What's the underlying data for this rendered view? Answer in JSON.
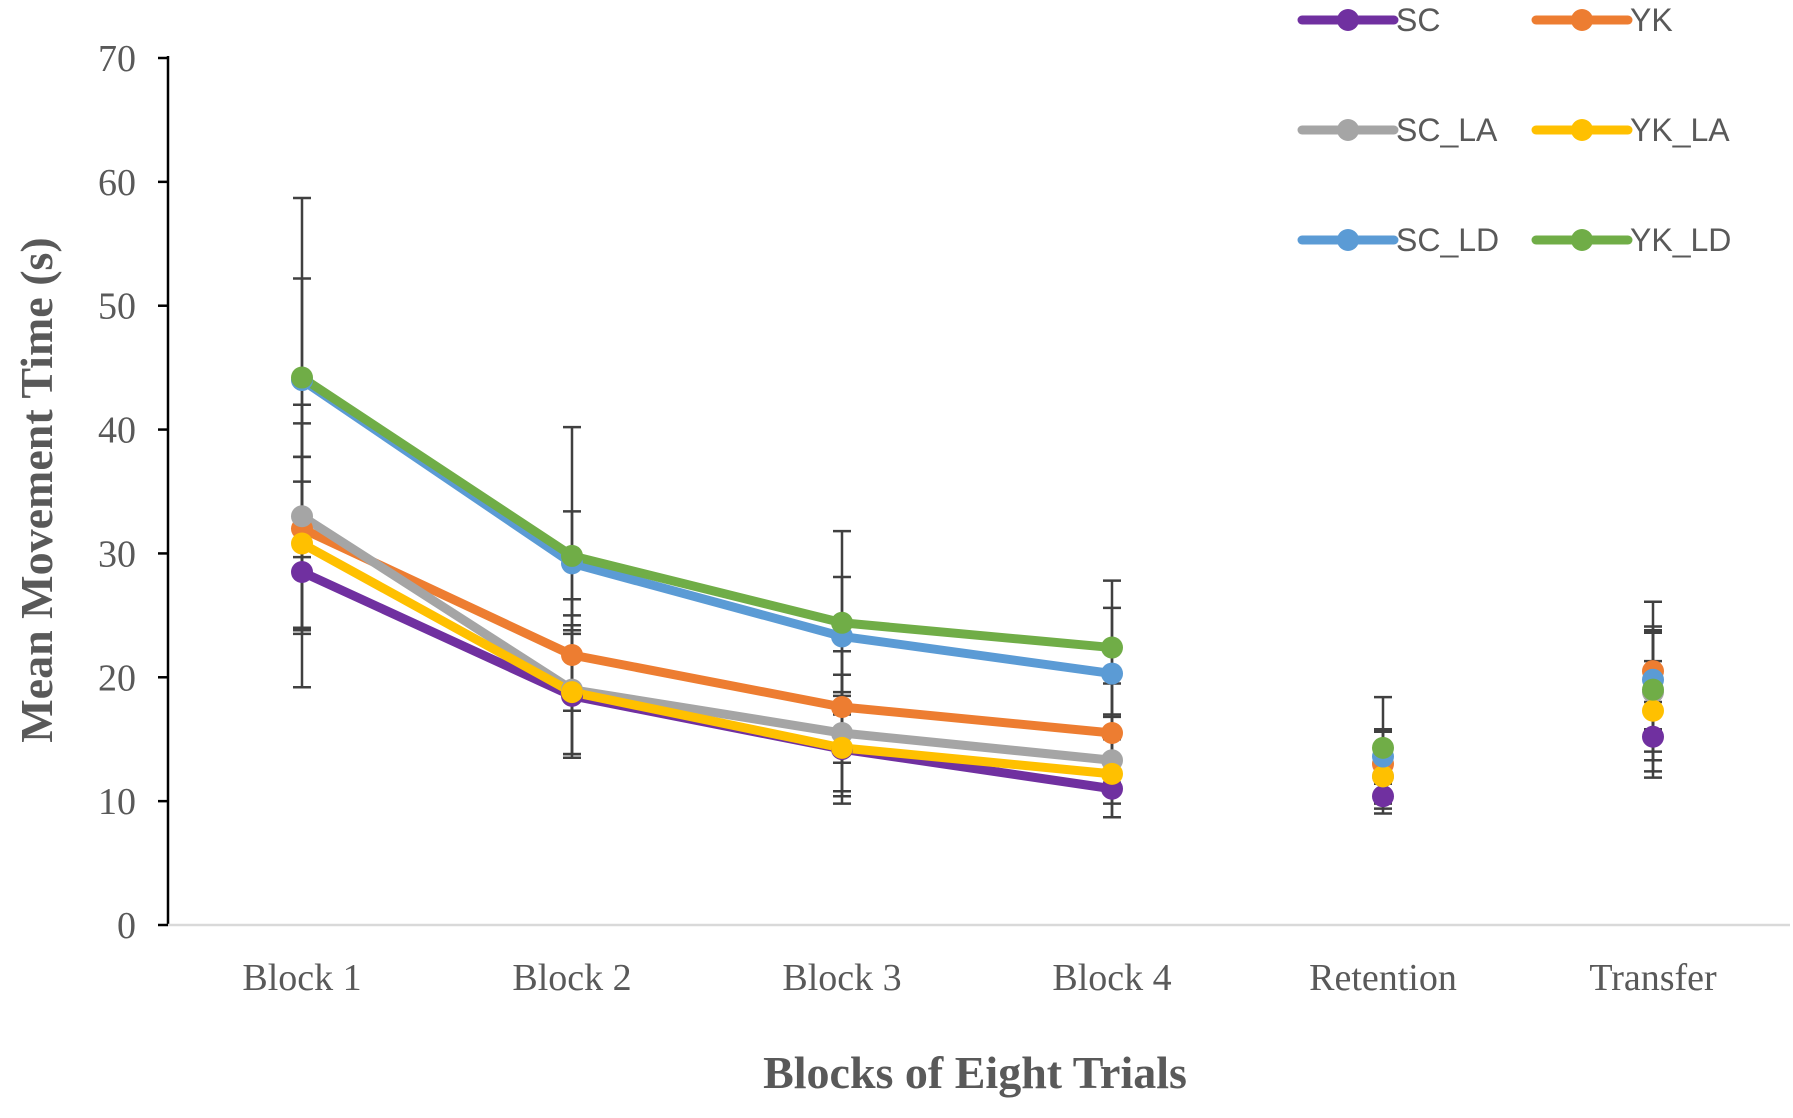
{
  "chart_data": {
    "type": "line",
    "title": "",
    "xlabel": "Blocks of Eight Trials",
    "ylabel": "Mean Movement Time (s)",
    "categories": [
      "Block 1",
      "Block 2",
      "Block 3",
      "Block 4",
      "Retention",
      "Transfer"
    ],
    "ylim": [
      0,
      70
    ],
    "yticks": [
      0,
      10,
      20,
      30,
      40,
      50,
      60,
      70
    ],
    "grid": false,
    "legend_position": "top-right",
    "connected_categories": [
      "Block 1",
      "Block 2",
      "Block 3",
      "Block 4"
    ],
    "series": [
      {
        "name": "SC",
        "color": "#7030A0",
        "values": [
          28.5,
          18.5,
          14.2,
          11.0,
          10.4,
          15.2
        ],
        "error": [
          9.3,
          5.0,
          3.8,
          2.3,
          1.4,
          2.8
        ]
      },
      {
        "name": "YK",
        "color": "#ED7D31",
        "values": [
          32.0,
          21.8,
          17.6,
          15.5,
          13.0,
          20.5
        ],
        "error": [
          8.5,
          4.5,
          4.5,
          4.0,
          2.6,
          3.6
        ]
      },
      {
        "name": "SC_LA",
        "color": "#A5A5A5",
        "values": [
          33.0,
          19.0,
          15.5,
          13.3,
          12.0,
          18.8
        ],
        "error": [
          9.0,
          5.2,
          4.7,
          3.5,
          2.6,
          4.8
        ]
      },
      {
        "name": "YK_LA",
        "color": "#FFC000",
        "values": [
          30.8,
          18.8,
          14.3,
          12.2,
          12.0,
          17.3
        ],
        "error": [
          7.0,
          5.0,
          4.5,
          3.5,
          2.2,
          4.0
        ]
      },
      {
        "name": "SC_LD",
        "color": "#5B9BD5",
        "values": [
          44.0,
          29.2,
          23.3,
          20.3,
          13.6,
          19.8
        ],
        "error": [
          8.2,
          4.2,
          4.8,
          5.3,
          2.2,
          4.0
        ]
      },
      {
        "name": "YK_LD",
        "color": "#70AD47",
        "values": [
          44.2,
          29.8,
          24.4,
          22.4,
          14.3,
          19.0
        ],
        "error": [
          14.5,
          10.4,
          7.4,
          5.4,
          4.1,
          7.1
        ]
      }
    ]
  }
}
